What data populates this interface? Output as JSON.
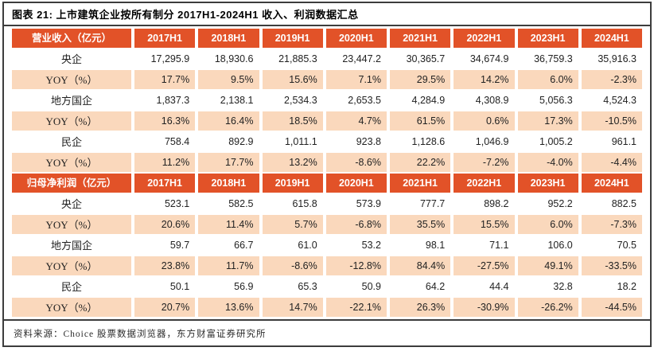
{
  "title": "图表 21: 上市建筑企业按所有制分 2017H1-2024H1 收入、利润数据汇总",
  "source": "资料来源：Choice 股票数据浏览器，东方财富证券研究所",
  "colors": {
    "header_bg": "#e25228",
    "yoy_bg": "#fad8bc",
    "border": "#3d3d3d",
    "header_text": "#ffffff",
    "body_text": "#222222"
  },
  "years": [
    "2017H1",
    "2018H1",
    "2019H1",
    "2020H1",
    "2021H1",
    "2022H1",
    "2023H1",
    "2024H1"
  ],
  "sections": [
    {
      "header": "营业收入（亿元）",
      "rows": [
        {
          "label": "央企",
          "type": "value",
          "values": [
            "17,295.9",
            "18,930.6",
            "21,885.3",
            "23,447.2",
            "30,365.7",
            "34,674.9",
            "36,759.3",
            "35,916.3"
          ]
        },
        {
          "label": "YOY（%）",
          "type": "yoy",
          "values": [
            "17.7%",
            "9.5%",
            "15.6%",
            "7.1%",
            "29.5%",
            "14.2%",
            "6.0%",
            "-2.3%"
          ]
        },
        {
          "label": "地方国企",
          "type": "value",
          "values": [
            "1,837.3",
            "2,138.1",
            "2,534.3",
            "2,653.5",
            "4,284.9",
            "4,308.9",
            "5,056.3",
            "4,524.3"
          ]
        },
        {
          "label": "YOY（%）",
          "type": "yoy",
          "values": [
            "16.3%",
            "16.4%",
            "18.5%",
            "4.7%",
            "61.5%",
            "0.6%",
            "17.3%",
            "-10.5%"
          ]
        },
        {
          "label": "民企",
          "type": "value",
          "values": [
            "758.4",
            "892.9",
            "1,011.1",
            "923.8",
            "1,128.6",
            "1,046.9",
            "1,005.2",
            "961.1"
          ]
        },
        {
          "label": "YOY（%）",
          "type": "yoy",
          "values": [
            "11.2%",
            "17.7%",
            "13.2%",
            "-8.6%",
            "22.2%",
            "-7.2%",
            "-4.0%",
            "-4.4%"
          ]
        }
      ]
    },
    {
      "header": "归母净利润（亿元）",
      "rows": [
        {
          "label": "央企",
          "type": "value",
          "values": [
            "523.1",
            "582.5",
            "615.8",
            "573.9",
            "777.7",
            "898.2",
            "952.2",
            "882.5"
          ]
        },
        {
          "label": "YOY（%）",
          "type": "yoy",
          "values": [
            "20.6%",
            "11.4%",
            "5.7%",
            "-6.8%",
            "35.5%",
            "15.5%",
            "6.0%",
            "-7.3%"
          ]
        },
        {
          "label": "地方国企",
          "type": "value",
          "values": [
            "59.7",
            "66.7",
            "61.0",
            "53.2",
            "98.1",
            "71.1",
            "106.0",
            "70.5"
          ]
        },
        {
          "label": "YOY（%）",
          "type": "yoy",
          "values": [
            "23.8%",
            "11.7%",
            "-8.6%",
            "-12.8%",
            "84.4%",
            "-27.5%",
            "49.1%",
            "-33.5%"
          ]
        },
        {
          "label": "民企",
          "type": "value",
          "values": [
            "50.1",
            "56.9",
            "65.3",
            "50.9",
            "64.2",
            "44.4",
            "32.8",
            "18.2"
          ]
        },
        {
          "label": "YOY（%）",
          "type": "yoy",
          "values": [
            "20.7%",
            "13.6%",
            "14.7%",
            "-22.1%",
            "26.3%",
            "-30.9%",
            "-26.2%",
            "-44.5%"
          ]
        }
      ]
    }
  ]
}
